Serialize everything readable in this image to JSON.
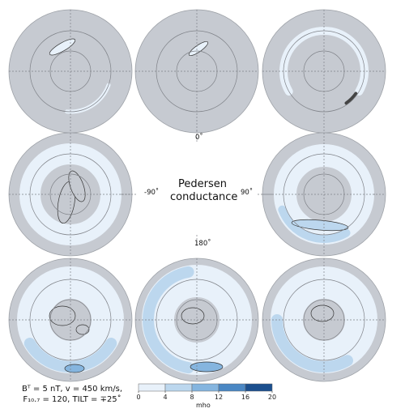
{
  "figure": {
    "title_lines": [
      "Pedersen",
      "conductance"
    ],
    "direction_labels": {
      "top": "0˚",
      "left": "-90˚",
      "right": "90˚",
      "bottom": "180˚"
    },
    "params_line1": "Bᵀ = 5 nT, v = 450 km/s,",
    "params_line2": "F₁₀.₇ = 120, TILT = ∓25˚"
  },
  "colors": {
    "background_disk": "#c6cad1",
    "grid": "#7f8288",
    "contour": "#333333",
    "level_fills": [
      "#e8f1fa",
      "#bcd7ee",
      "#85b5df",
      "#4a87c4",
      "#1b4f8e"
    ]
  },
  "chart_data": {
    "type": "polar-map",
    "quantity": "Pedersen conductance",
    "colorbar": {
      "ticks": [
        0,
        4,
        8,
        12,
        16,
        20
      ],
      "unit": "mho",
      "range": [
        0,
        20
      ],
      "bins": [
        [
          0,
          4
        ],
        [
          4,
          8
        ],
        [
          8,
          12
        ],
        [
          12,
          16
        ],
        [
          16,
          20
        ]
      ]
    },
    "panel_peak_levels": [
      {
        "panel": "row1-col1",
        "max_bin": 0
      },
      {
        "panel": "row1-col2",
        "max_bin": 0
      },
      {
        "panel": "row1-col3",
        "max_bin": 0
      },
      {
        "panel": "row2-col1",
        "max_bin": 0
      },
      {
        "panel": "row2-col3",
        "max_bin": 1
      },
      {
        "panel": "row3-col1",
        "max_bin": 2
      },
      {
        "panel": "row3-col2",
        "max_bin": 2
      },
      {
        "panel": "row3-col3",
        "max_bin": 1
      }
    ]
  }
}
